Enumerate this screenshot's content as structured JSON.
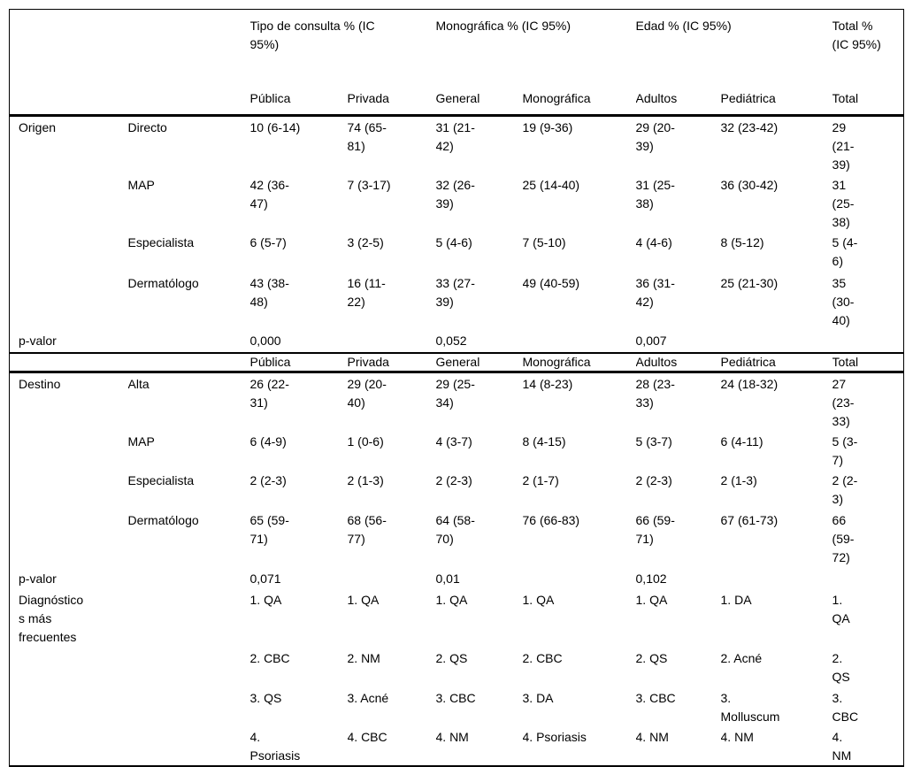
{
  "colors": {
    "background": "#ffffff",
    "border": "#000000",
    "text": "#000000"
  },
  "table": {
    "header": {
      "groups": [
        {
          "label": "",
          "span": 2
        },
        {
          "label": "Tipo de consulta % (IC 95%)",
          "span": 2
        },
        {
          "label": "Monográfica % (IC 95%)",
          "span": 2
        },
        {
          "label": "Edad % (IC 95%)",
          "span": 2
        },
        {
          "label": "Total % (IC 95%)",
          "span": 1
        }
      ],
      "columns": [
        "",
        "",
        "Pública",
        "Privada",
        "General",
        "Monográfica",
        "Adultos",
        "Pediátrica",
        "Total"
      ]
    },
    "rows": [
      {
        "type": "data",
        "cells": [
          "Origen",
          "Directo",
          "10 (6-14)",
          "74 (65-81)",
          "31 (21-42)",
          "19 (9-36)",
          "29 (20-39)",
          "32 (23-42)",
          "29 (21-39)"
        ]
      },
      {
        "type": "data",
        "cells": [
          "",
          "MAP",
          "42 (36-47)",
          "7 (3-17)",
          "32 (26-39)",
          "25 (14-40)",
          "31 (25-38)",
          "36 (30-42)",
          "31 (25-38)"
        ]
      },
      {
        "type": "data",
        "cells": [
          "",
          "Especialista",
          "6 (5-7)",
          "3 (2-5)",
          "5 (4-6)",
          "7 (5-10)",
          "4 (4-6)",
          "8 (5-12)",
          "5 (4-6)"
        ]
      },
      {
        "type": "data",
        "cells": [
          "",
          "Dermatólogo",
          "43 (38-48)",
          "16 (11-22)",
          "33 (27-39)",
          "49 (40-59)",
          "36 (31-42)",
          "25 (21-30)",
          "35 (30-40)"
        ]
      },
      {
        "type": "pvalue",
        "cells": [
          "p-valor",
          "",
          "0,000",
          "",
          "0,052",
          "",
          "0,007",
          "",
          ""
        ]
      },
      {
        "type": "subheader",
        "cells": [
          "",
          "",
          "Pública",
          "Privada",
          "General",
          "Monográfica",
          "Adultos",
          "Pediátrica",
          "Total"
        ]
      },
      {
        "type": "data",
        "cells": [
          "Destino",
          "Alta",
          "26 (22-31)",
          "29 (20-40)",
          "29 (25-34)",
          "14 (8-23)",
          "28 (23-33)",
          "24 (18-32)",
          "27 (23-33)"
        ]
      },
      {
        "type": "data",
        "cells": [
          "",
          "MAP",
          "6 (4-9)",
          "1 (0-6)",
          "4 (3-7)",
          "8 (4-15)",
          "5 (3-7)",
          "6 (4-11)",
          "5 (3-7)"
        ]
      },
      {
        "type": "data",
        "cells": [
          "",
          "Especialista",
          "2 (2-3)",
          "2 (1-3)",
          "2 (2-3)",
          "2 (1-7)",
          "2 (2-3)",
          "2 (1-3)",
          "2 (2-3)"
        ]
      },
      {
        "type": "data",
        "cells": [
          "",
          "Dermatólogo",
          "65 (59-71)",
          "68 (56-77)",
          "64 (58-70)",
          "76 (66-83)",
          "66 (59-71)",
          "67 (61-73)",
          "66 (59-72)"
        ]
      },
      {
        "type": "pvalue",
        "cells": [
          "p-valor",
          "",
          "0,071",
          "",
          "0,01",
          "",
          "0,102",
          "",
          ""
        ]
      },
      {
        "type": "data",
        "cells": [
          "Diagnósticos más frecuentes",
          "",
          "1. QA",
          "1. QA",
          "1. QA",
          "1. QA",
          "1. QA",
          "1. DA",
          "1. QA"
        ]
      },
      {
        "type": "data",
        "cells": [
          "",
          "",
          "2. CBC",
          "2. NM",
          "2. QS",
          "2. CBC",
          "2. QS",
          "2. Acné",
          "2. QS"
        ]
      },
      {
        "type": "data",
        "cells": [
          "",
          "",
          "3. QS",
          "3. Acné",
          "3. CBC",
          "3. DA",
          "3. CBC",
          "3. Molluscum",
          "3. CBC"
        ]
      },
      {
        "type": "data",
        "cells": [
          "",
          "",
          "4. Psoriasis",
          "4. CBC",
          "4. NM",
          "4. Psoriasis",
          "4. NM",
          "4. NM",
          "4. NM"
        ]
      }
    ]
  }
}
